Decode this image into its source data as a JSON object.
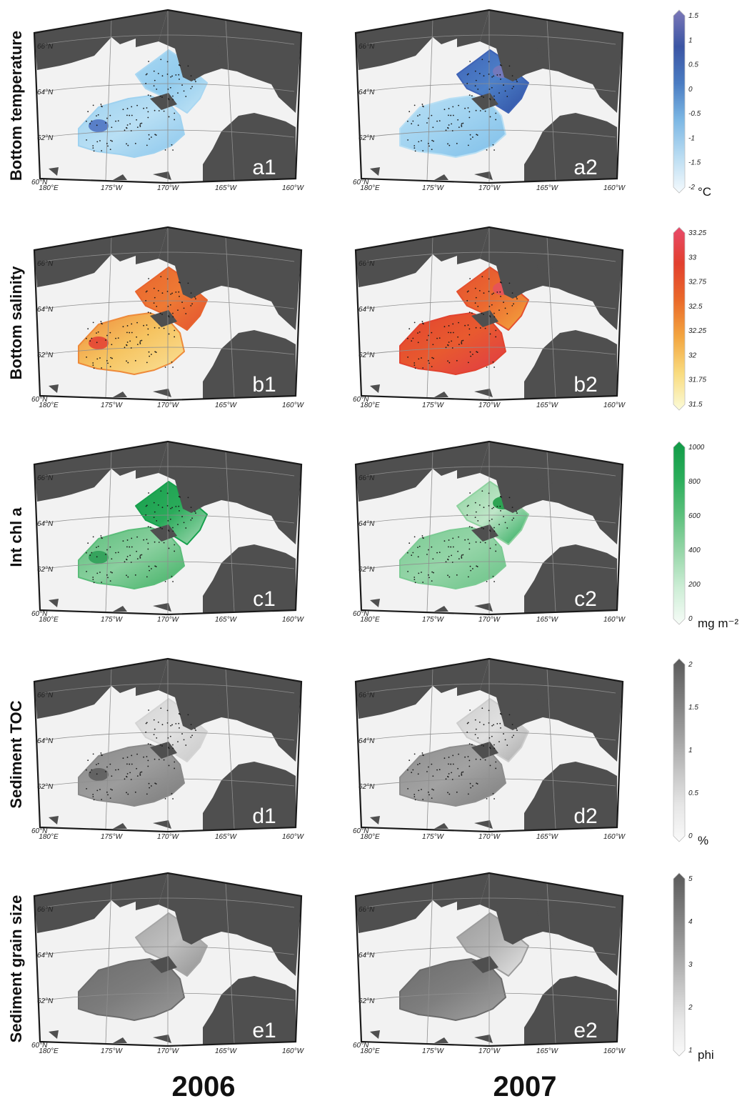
{
  "years": [
    "2006",
    "2007"
  ],
  "rows": [
    {
      "key": "temperature",
      "title": "Bottom temperature",
      "panels": [
        "a1",
        "a2"
      ],
      "colorbar": {
        "ticks": [
          "1.5",
          "1",
          "0.5",
          "0",
          "-0.5",
          "-1",
          "-1.5",
          "-2"
        ],
        "unit": "°C",
        "colors": [
          "#7c78b8",
          "#3b55a4",
          "#4a7cc2",
          "#7cb7e4",
          "#b9dcf2",
          "#f5fafd"
        ]
      },
      "fields": [
        {
          "poly": "S",
          "colors": [
            "#9fd2f0",
            "#b8dff4",
            "#8ac6ec"
          ],
          "accent": "#4a6fc0"
        },
        {
          "poly": "N",
          "colors": [
            "#a9d7f2",
            "#92ccee",
            "#c4e5f6"
          ]
        }
      ],
      "fields2007": [
        {
          "poly": "S",
          "colors": [
            "#b8dff4",
            "#9fd2f0",
            "#7fbfe9"
          ]
        },
        {
          "poly": "N",
          "colors": [
            "#3f63b6",
            "#4d80c8",
            "#2f4fa3"
          ],
          "accent": "#7b78b9"
        }
      ]
    },
    {
      "key": "salinity",
      "title": "Bottom salinity",
      "panels": [
        "b1",
        "b2"
      ],
      "colorbar": {
        "ticks": [
          "33.25",
          "33",
          "32.75",
          "32.5",
          "32.25",
          "32",
          "31.75",
          "31.5"
        ],
        "unit": "",
        "colors": [
          "#e84a6a",
          "#e2402e",
          "#ea6a2a",
          "#f3a640",
          "#f9dc80",
          "#fbfbd8"
        ]
      },
      "fields": [
        {
          "poly": "S",
          "colors": [
            "#ee8a3a",
            "#f6c461",
            "#fae29a"
          ],
          "accent": "#e33e33"
        },
        {
          "poly": "N",
          "colors": [
            "#e8642e",
            "#ee7a34",
            "#e35230"
          ]
        }
      ],
      "fields2007": [
        {
          "poly": "S",
          "colors": [
            "#e2432f",
            "#e85a2f",
            "#e03a46"
          ]
        },
        {
          "poly": "N",
          "colors": [
            "#e4502f",
            "#eb6a30",
            "#f4a83e"
          ],
          "accent": "#e5515f"
        }
      ]
    },
    {
      "key": "chl",
      "title": "Int chl a",
      "panels": [
        "c1",
        "c2"
      ],
      "colorbar": {
        "ticks": [
          "1000",
          "800",
          "600",
          "400",
          "200",
          "0"
        ],
        "unit": "mg m⁻²",
        "colors": [
          "#109a46",
          "#2aad5a",
          "#5cc07c",
          "#96d6a8",
          "#cdeed6",
          "#f7fcf8"
        ]
      },
      "fields": [
        {
          "poly": "S",
          "colors": [
            "#5bbd7a",
            "#8ad09f",
            "#3fb063"
          ],
          "accent": "#2a9e55"
        },
        {
          "poly": "N",
          "colors": [
            "#17a04d",
            "#2aab5a",
            "#a9dcb8"
          ]
        }
      ],
      "fields2007": [
        {
          "poly": "S",
          "colors": [
            "#7ccb94",
            "#95d5a8",
            "#69c286"
          ]
        },
        {
          "poly": "N",
          "colors": [
            "#8ed29f",
            "#bfe6c8",
            "#27a858"
          ],
          "accent": "#15993f"
        }
      ]
    },
    {
      "key": "toc",
      "title": "Sediment TOC",
      "panels": [
        "d1",
        "d2"
      ],
      "colorbar": {
        "ticks": [
          "2",
          "1.5",
          "1",
          "0.5",
          "0"
        ],
        "unit": "%",
        "colors": [
          "#5a5a5a",
          "#7a7a7a",
          "#9c9c9c",
          "#c2c2c2",
          "#e6e6e6",
          "#fafafa"
        ]
      },
      "fields": [
        {
          "poly": "S",
          "colors": [
            "#8a8a8a",
            "#9c9c9c",
            "#7a7a7a"
          ],
          "accent": "#5a5a5a"
        },
        {
          "poly": "N",
          "colors": [
            "#d4d4d4",
            "#e2e2e2",
            "#c8c8c8"
          ]
        }
      ],
      "fields2007": [
        {
          "poly": "S",
          "colors": [
            "#8e8e8e",
            "#a2a2a2",
            "#7e7e7e"
          ]
        },
        {
          "poly": "N",
          "colors": [
            "#cdcdcd",
            "#e0e0e0",
            "#a8a8a8"
          ]
        }
      ]
    },
    {
      "key": "grain",
      "title": "Sediment grain size",
      "panels": [
        "e1",
        "e2"
      ],
      "colorbar": {
        "ticks": [
          "5",
          "4",
          "3",
          "2",
          "1"
        ],
        "unit": "phi",
        "colors": [
          "#5a5a5a",
          "#7a7a7a",
          "#9c9c9c",
          "#c2c2c2",
          "#e6e6e6",
          "#fafafa"
        ]
      },
      "fields": [
        {
          "poly": "S",
          "colors": [
            "#6d6d6d",
            "#7c7c7c",
            "#9a9a9a"
          ]
        },
        {
          "poly": "N",
          "colors": [
            "#a6a6a6",
            "#c0c0c0",
            "#909090"
          ]
        }
      ],
      "fields2007": [
        {
          "poly": "S",
          "colors": [
            "#6c6c6c",
            "#7e7e7e",
            "#a4a4a4"
          ]
        },
        {
          "poly": "N",
          "colors": [
            "#9c9c9c",
            "#b4b4b4",
            "#e6e6e6"
          ]
        }
      ]
    }
  ],
  "map": {
    "lat_labels": [
      "66°N",
      "64°N",
      "62°N",
      "60°N"
    ],
    "lon_labels": [
      "180°E",
      "175°W",
      "170°W",
      "165°W",
      "160°W"
    ],
    "land_color": "#4f4f4f",
    "sea_color": "#f2f2f2"
  }
}
